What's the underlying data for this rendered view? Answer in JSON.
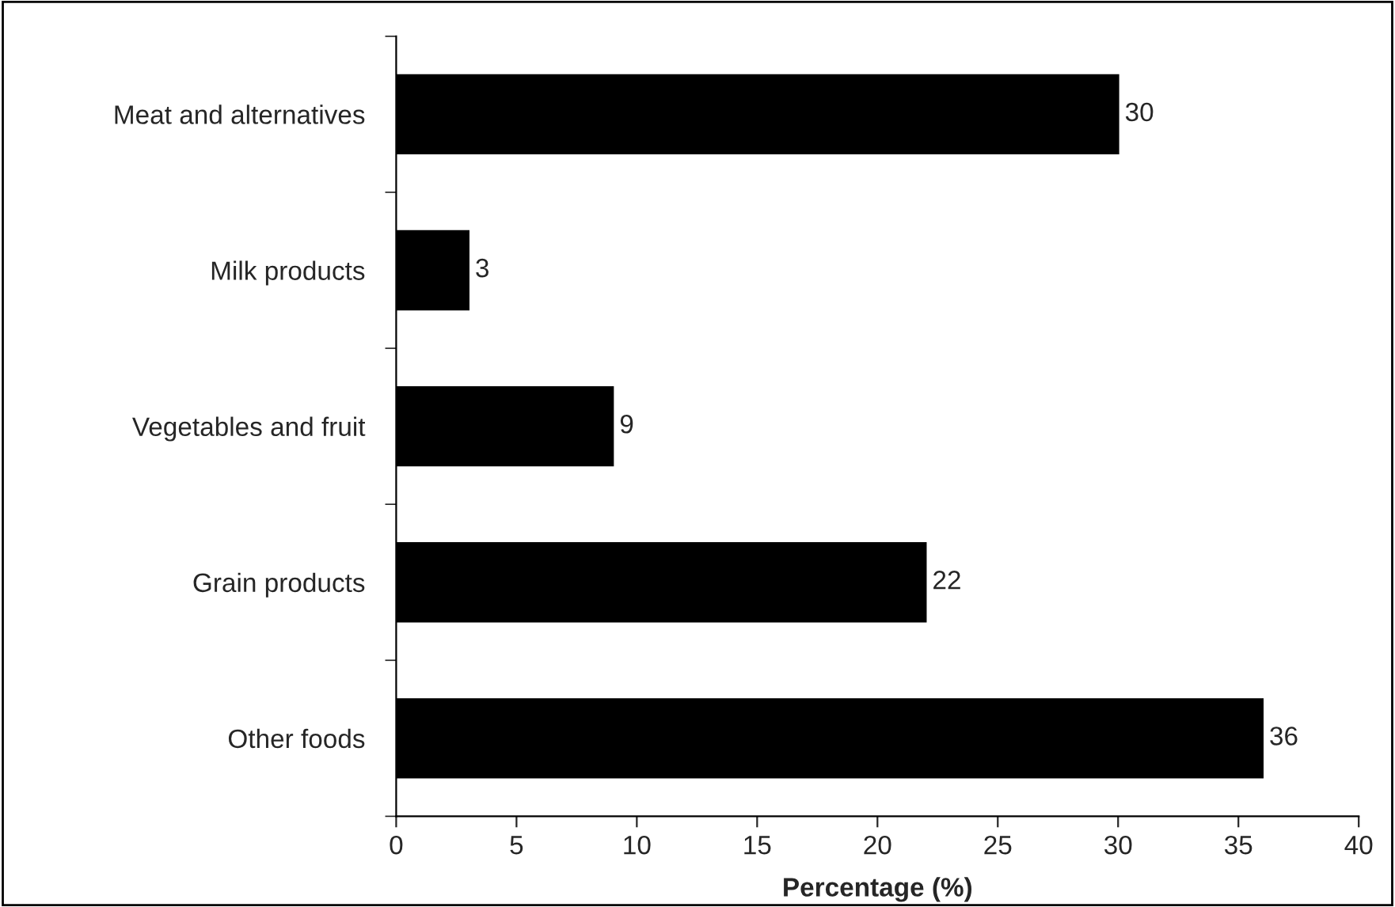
{
  "chart_data": {
    "type": "bar",
    "orientation": "horizontal",
    "xlabel": "Percentage (%)",
    "categories": [
      "Meat and alternatives",
      "Milk products",
      "Vegetables and fruit",
      "Grain products",
      "Other foods"
    ],
    "values": [
      30,
      3,
      9,
      22,
      36
    ],
    "color": "#000000",
    "xlim": [
      0,
      40
    ],
    "xticks": [
      0,
      5,
      10,
      15,
      20,
      25,
      30,
      35,
      40
    ],
    "data_labels": true,
    "grid": false,
    "legend": false
  }
}
